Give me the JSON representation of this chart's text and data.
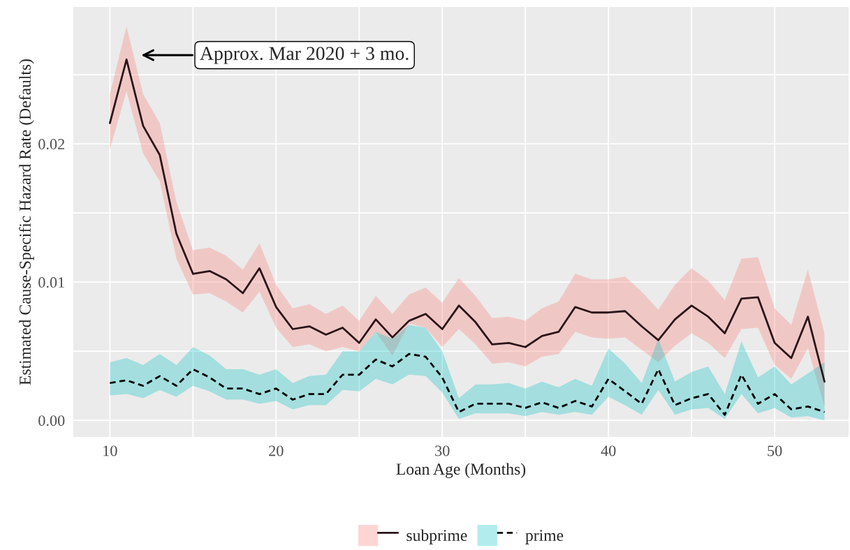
{
  "chart_data": {
    "type": "line",
    "xlabel": "Loan Age (Months)",
    "ylabel": "Estimated Cause-Specific Hazard Rate (Defaults)",
    "x": [
      10,
      11,
      12,
      13,
      14,
      15,
      16,
      17,
      18,
      19,
      20,
      21,
      22,
      23,
      24,
      25,
      26,
      27,
      28,
      29,
      30,
      31,
      32,
      33,
      34,
      35,
      36,
      37,
      38,
      39,
      40,
      41,
      42,
      43,
      44,
      45,
      46,
      47,
      48,
      49,
      50,
      51,
      52,
      53
    ],
    "series": [
      {
        "name": "subprime",
        "color": "#2b1418",
        "line_style": "solid",
        "values": [
          0.0215,
          0.0261,
          0.0213,
          0.0192,
          0.0135,
          0.0106,
          0.0108,
          0.0102,
          0.0092,
          0.011,
          0.0082,
          0.0066,
          0.0068,
          0.0062,
          0.0067,
          0.0056,
          0.0073,
          0.006,
          0.0072,
          0.0077,
          0.0066,
          0.0083,
          0.0071,
          0.0055,
          0.0056,
          0.0053,
          0.0061,
          0.0064,
          0.0082,
          0.0078,
          0.0078,
          0.0079,
          0.0068,
          0.0058,
          0.0073,
          0.0083,
          0.0075,
          0.0063,
          0.0088,
          0.0089,
          0.0056,
          0.0045,
          0.0075,
          0.0028
        ],
        "lower": [
          0.0196,
          0.0238,
          0.0193,
          0.0173,
          0.0117,
          0.0091,
          0.0092,
          0.0086,
          0.0078,
          0.0093,
          0.0067,
          0.0053,
          0.0055,
          0.005,
          0.0053,
          0.005,
          0.0064,
          0.0047,
          0.007,
          0.0067,
          0.0053,
          0.0066,
          0.0055,
          0.0041,
          0.0042,
          0.0039,
          0.0046,
          0.0048,
          0.0064,
          0.006,
          0.0059,
          0.006,
          0.0051,
          0.0042,
          0.0054,
          0.0063,
          0.0056,
          0.0045,
          0.0066,
          0.0067,
          0.004,
          0.003,
          0.0052,
          0.001
        ],
        "upper": [
          0.0236,
          0.0285,
          0.0236,
          0.0215,
          0.0158,
          0.0123,
          0.0125,
          0.0119,
          0.0109,
          0.0128,
          0.0098,
          0.0081,
          0.0084,
          0.0077,
          0.0083,
          0.0072,
          0.009,
          0.0077,
          0.0091,
          0.0096,
          0.0085,
          0.0103,
          0.009,
          0.0074,
          0.0075,
          0.0072,
          0.0081,
          0.0086,
          0.0106,
          0.0102,
          0.0102,
          0.0104,
          0.0093,
          0.008,
          0.0098,
          0.011,
          0.0101,
          0.0087,
          0.0117,
          0.0118,
          0.0081,
          0.0069,
          0.0109,
          0.0063
        ]
      },
      {
        "name": "prime",
        "color": "#000000",
        "line_style": "dashed",
        "values": [
          0.0027,
          0.0029,
          0.0025,
          0.0032,
          0.0025,
          0.0037,
          0.0031,
          0.0023,
          0.0023,
          0.0019,
          0.0023,
          0.0015,
          0.0019,
          0.0019,
          0.0033,
          0.0033,
          0.0044,
          0.0039,
          0.0048,
          0.0046,
          0.0031,
          0.0006,
          0.0012,
          0.0012,
          0.0012,
          0.0009,
          0.0013,
          0.0009,
          0.0014,
          0.001,
          0.003,
          0.0021,
          0.0012,
          0.0037,
          0.0011,
          0.0016,
          0.0019,
          0.0004,
          0.0033,
          0.0012,
          0.0019,
          0.0008,
          0.001,
          0.0006
        ],
        "lower": [
          0.0018,
          0.0019,
          0.0016,
          0.0022,
          0.0017,
          0.0025,
          0.0021,
          0.0015,
          0.0015,
          0.0012,
          0.0014,
          0.0008,
          0.0011,
          0.0011,
          0.0022,
          0.0021,
          0.003,
          0.0026,
          0.0033,
          0.0032,
          0.002,
          0.0001,
          0.0005,
          0.0005,
          0.0005,
          0.0003,
          0.0006,
          0.0004,
          0.0006,
          0.0004,
          0.0017,
          0.0011,
          0.0004,
          0.0022,
          0.0004,
          0.0008,
          0.0009,
          0.0001,
          0.0019,
          0.0005,
          0.0009,
          0.0002,
          0.0003,
          0.0
        ],
        "upper": [
          0.0042,
          0.0045,
          0.004,
          0.0048,
          0.004,
          0.0053,
          0.0047,
          0.0037,
          0.0037,
          0.0033,
          0.0037,
          0.0027,
          0.0032,
          0.0033,
          0.005,
          0.005,
          0.0064,
          0.0059,
          0.0069,
          0.0067,
          0.005,
          0.0016,
          0.0026,
          0.0026,
          0.0027,
          0.0023,
          0.0028,
          0.0024,
          0.003,
          0.0025,
          0.0052,
          0.0041,
          0.0027,
          0.0059,
          0.0028,
          0.0035,
          0.0039,
          0.0019,
          0.0057,
          0.0031,
          0.0039,
          0.0026,
          0.0034,
          0.0042
        ]
      }
    ],
    "xlim": [
      7.8,
      54.45
    ],
    "ylim": [
      -0.0012,
      0.0299
    ],
    "xticks": [
      10,
      {
        "value": 15,
        "label": null
      },
      20,
      {
        "value": 25,
        "label": null
      },
      30,
      {
        "value": 35,
        "label": null
      },
      40,
      {
        "value": 45,
        "label": null
      },
      50
    ],
    "yticks": [
      {
        "value": 0,
        "label": "0.00"
      },
      {
        "value": 0.005,
        "label": null
      },
      {
        "value": 0.01,
        "label": "0.01"
      },
      {
        "value": 0.015,
        "label": null
      },
      {
        "value": 0.02,
        "label": "0.02"
      },
      {
        "value": 0.025,
        "label": null
      }
    ],
    "grid": true,
    "legend": "bottom",
    "annotations": [
      "Approx. Mar 2020 + 3 mo."
    ]
  }
}
